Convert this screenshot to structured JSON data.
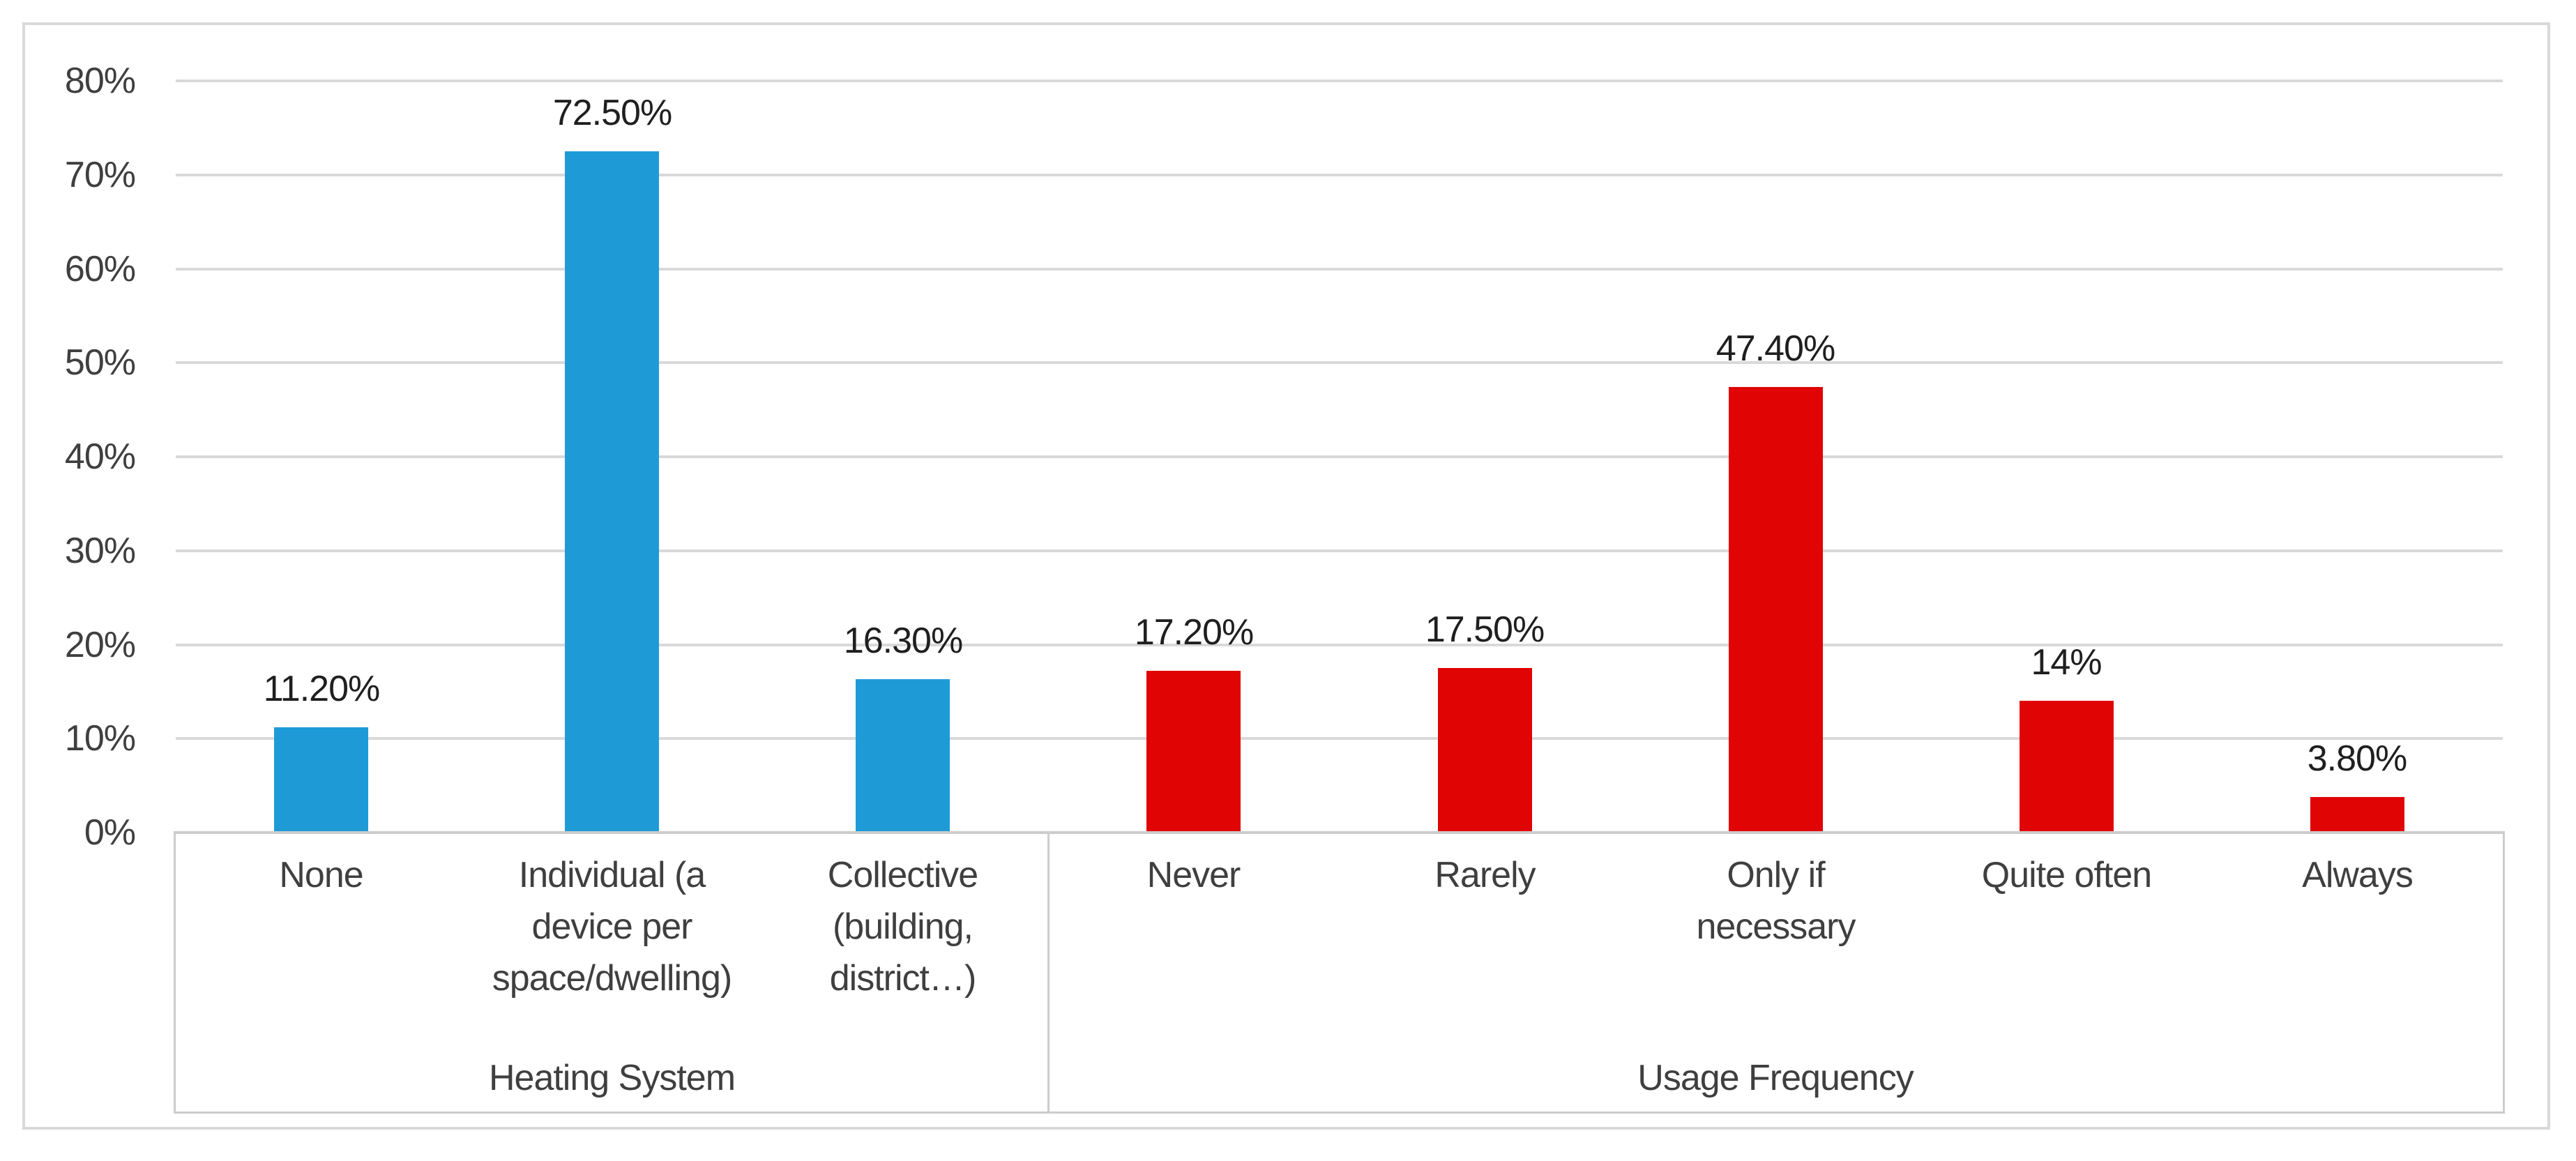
{
  "chart_data": {
    "type": "bar",
    "title": "",
    "xlabel": "",
    "ylabel": "",
    "ylim_percent": [
      0,
      80
    ],
    "ytick_step_percent": 10,
    "ytick_labels": [
      "80%",
      "70%",
      "60%",
      "50%",
      "40%",
      "30%",
      "20%",
      "10%",
      "0%"
    ],
    "grid": true,
    "legend": false,
    "colors": {
      "heating_system_bar": "#1E9BD7",
      "usage_frequency_bar": "#E00404",
      "gridline": "#D9D9D9",
      "axis_line": "#CCCCCC",
      "frame_border": "#D9D9D9",
      "tick_text": "#3F3F3F",
      "data_label_text": "#1F1F1F"
    },
    "groups": [
      {
        "name": "Heating System",
        "color_key": "heating_system_bar",
        "bars": [
          {
            "category": "None",
            "value_percent": 11.2,
            "data_label": "11.20%"
          },
          {
            "category": "Individual (a\ndevice per\nspace/dwelling)",
            "value_percent": 72.5,
            "data_label": "72.50%"
          },
          {
            "category": "Collective\n(building,\ndistrict…)",
            "value_percent": 16.3,
            "data_label": "16.30%"
          }
        ]
      },
      {
        "name": "Usage Frequency",
        "color_key": "usage_frequency_bar",
        "bars": [
          {
            "category": "Never",
            "value_percent": 17.2,
            "data_label": "17.20%"
          },
          {
            "category": "Rarely",
            "value_percent": 17.5,
            "data_label": "17.50%"
          },
          {
            "category": "Only if\nnecessary",
            "value_percent": 47.4,
            "data_label": "47.40%"
          },
          {
            "category": "Quite often",
            "value_percent": 14,
            "data_label": "14%"
          },
          {
            "category": "Always",
            "value_percent": 3.8,
            "data_label": "3.80%"
          }
        ]
      }
    ]
  }
}
